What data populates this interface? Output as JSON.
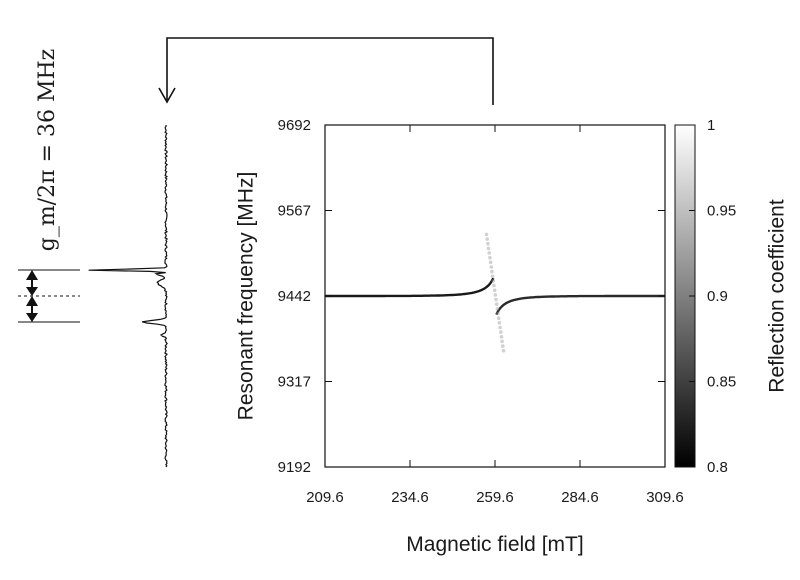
{
  "chart_data": {
    "type": "heatmap",
    "title": "",
    "xlabel": "Magnetic field [mT]",
    "ylabel": "Resonant frequency [MHz]",
    "colorbar_label": "Reflection coefficient",
    "xlim": [
      209.6,
      309.6
    ],
    "ylim": [
      9192,
      9692
    ],
    "x_ticks": [
      "209.6",
      "234.6",
      "259.6",
      "284.6",
      "309.6"
    ],
    "y_ticks": [
      "9192",
      "9317",
      "9442",
      "9567",
      "9692"
    ],
    "colorbar_range": [
      0.8,
      1
    ],
    "colorbar_ticks": [
      "0.8",
      "0.85",
      "0.9",
      "0.95",
      "1"
    ],
    "cavity_frequency_mhz": 9442,
    "crossing_field_mt": 259.6,
    "coupling_annotation": "g_m/2π = 36 MHz",
    "coupling_mhz": 36,
    "colormap": [
      "#000000",
      "#ffffff"
    ]
  }
}
